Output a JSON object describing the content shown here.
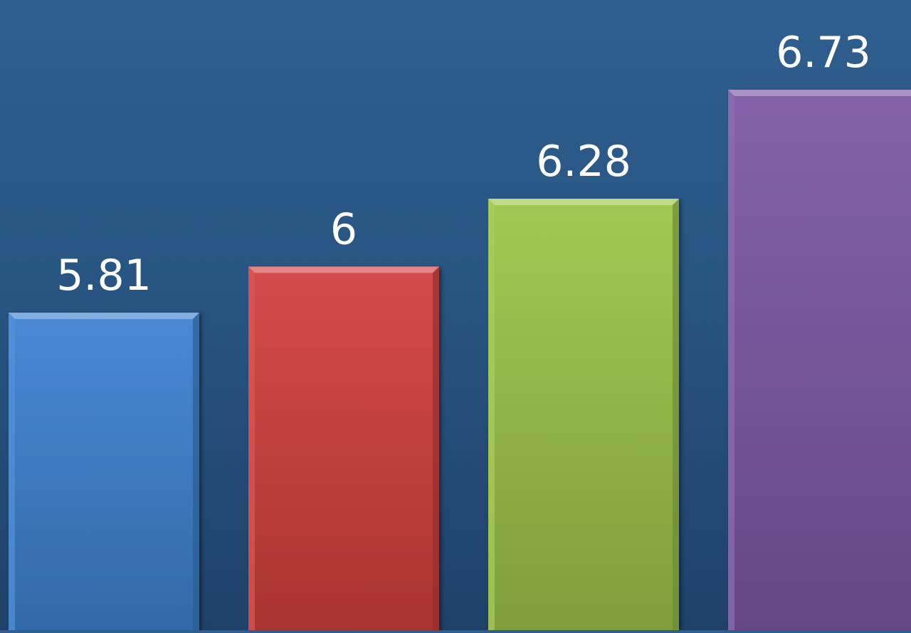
{
  "chart_data": {
    "type": "bar",
    "title": "",
    "xlabel": "",
    "ylabel": "",
    "categories": [
      "",
      "",
      "",
      ""
    ],
    "values": [
      5.81,
      6,
      6.28,
      6.73
    ],
    "value_labels": [
      "5.81",
      "6",
      "6.28",
      "6.73"
    ],
    "colors": [
      "#3f83d2",
      "#d3413f",
      "#9dc64a",
      "#7e5aa6"
    ],
    "ylim": [
      4.5,
      7.1
    ],
    "grid": false,
    "legend": "none"
  }
}
